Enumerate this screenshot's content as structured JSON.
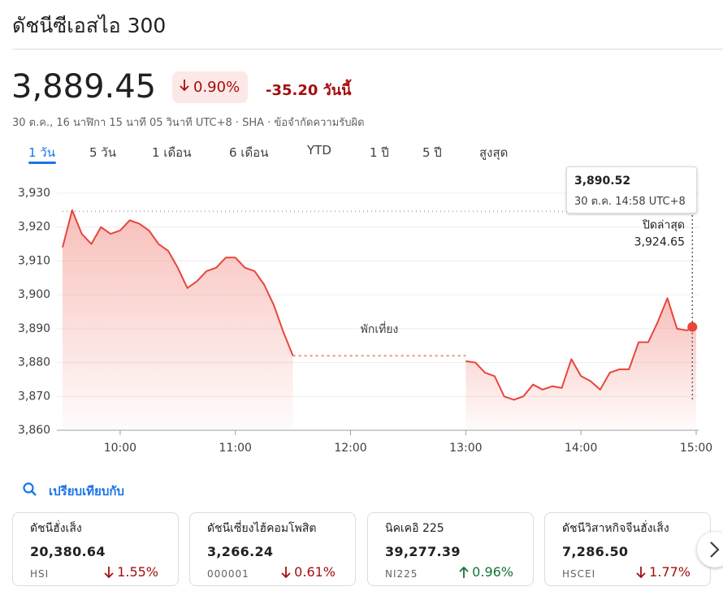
{
  "header": {
    "title": "ดัชนีซีเอสไอ 300",
    "price": "3,889.45",
    "change_percent": "0.90%",
    "direction": "down",
    "change": "-35.20 วันนี้",
    "meta": "30 ต.ค., 16 นาฬิกา 15 นาที 05 วินาที UTC+8 · SHA · ข้อจำกัดความรับผิด"
  },
  "tabs": {
    "items": [
      "1 วัน",
      "5 วัน",
      "1 เดือน",
      "6 เดือน",
      "YTD",
      "1 ปี",
      "5 ปี",
      "สูงสุด"
    ],
    "active": 0
  },
  "chart_data": {
    "type": "line",
    "color": "#e8453c",
    "grid": true,
    "x": [
      570,
      575,
      580,
      585,
      590,
      595,
      600,
      605,
      610,
      615,
      620,
      625,
      630,
      635,
      640,
      645,
      650,
      655,
      660,
      665,
      670,
      675,
      680,
      685,
      690,
      780,
      785,
      790,
      795,
      800,
      805,
      810,
      815,
      820,
      825,
      830,
      835,
      840,
      845,
      850,
      855,
      860,
      865,
      870,
      875,
      880,
      885,
      890,
      895,
      900
    ],
    "values": [
      3914,
      3925,
      3918,
      3915,
      3920,
      3918,
      3919,
      3922,
      3921,
      3919,
      3915,
      3913,
      3908,
      3902,
      3904,
      3907,
      3908,
      3911,
      3911,
      3908,
      3907,
      3903,
      3897,
      3889,
      3882,
      3880.4,
      3880,
      3877,
      3876,
      3870,
      3869,
      3870,
      3873.5,
      3872,
      3873,
      3872.5,
      3881,
      3876,
      3874.5,
      3872,
      3877,
      3878,
      3878,
      3886,
      3886,
      3892,
      3899,
      3890,
      3889.5,
      3890.5
    ],
    "xlim": [
      570,
      900
    ],
    "xticks": [
      {
        "value": 600,
        "label": "10:00"
      },
      {
        "value": 660,
        "label": "11:00"
      },
      {
        "value": 720,
        "label": "12:00"
      },
      {
        "value": 780,
        "label": "13:00"
      },
      {
        "value": 840,
        "label": "14:00"
      },
      {
        "value": 900,
        "label": "15:00"
      }
    ],
    "ylim": [
      3860,
      3930
    ],
    "yticks": [
      {
        "value": 3860,
        "label": "3,860"
      },
      {
        "value": 3870,
        "label": "3,870"
      },
      {
        "value": 3880,
        "label": "3,880"
      },
      {
        "value": 3890,
        "label": "3,890"
      },
      {
        "value": 3900,
        "label": "3,900"
      },
      {
        "value": 3910,
        "label": "3,910"
      },
      {
        "value": 3920,
        "label": "3,920"
      },
      {
        "value": 3930,
        "label": "3,930"
      }
    ],
    "annotation": "พักเที่ยง",
    "previous_close": {
      "label": "ปิดล่าสุด",
      "value": 3924.65,
      "value_label": "3,924.65"
    },
    "tooltip": {
      "x": 898,
      "value": 3890.52,
      "value_label": "3,890.52",
      "time": "30 ต.ค. 14:58 UTC+8"
    }
  },
  "compare": {
    "title": "เปรียบเทียบกับ",
    "cards": [
      {
        "name": "ดัชนีฮั่งเส็ง",
        "value": "20,380.64",
        "symbol": "HSI",
        "change": "1.55%",
        "direction": "down"
      },
      {
        "name": "ดัชนีเซี่ยงไฮ้คอมโพสิต",
        "value": "3,266.24",
        "symbol": "000001",
        "change": "0.61%",
        "direction": "down"
      },
      {
        "name": "นิคเคอิ 225",
        "value": "39,277.39",
        "symbol": "NI225",
        "change": "0.96%",
        "direction": "up"
      },
      {
        "name": "ดัชนีวิสาหกิจจีนฮั่งเส็ง",
        "value": "7,286.50",
        "symbol": "HSCEI",
        "change": "1.77%",
        "direction": "down"
      }
    ]
  }
}
